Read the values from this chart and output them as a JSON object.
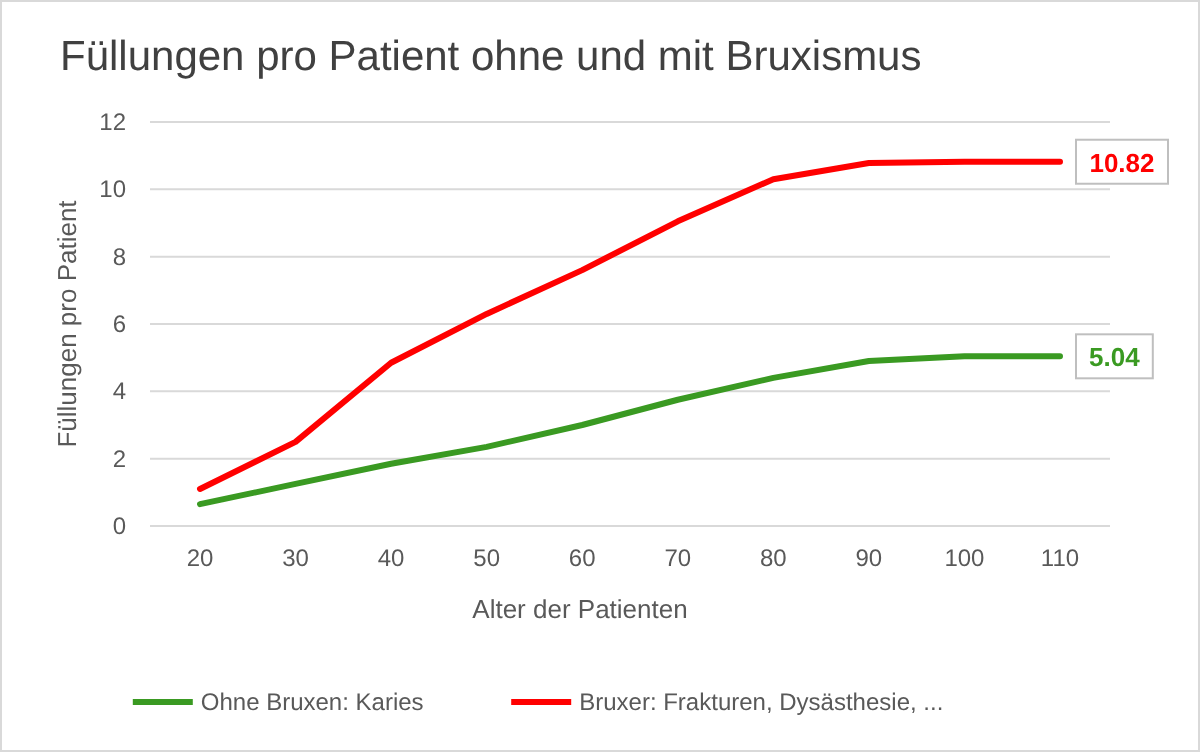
{
  "chart_data": {
    "type": "line",
    "title": "Füllungen pro Patient ohne und mit Bruxismus",
    "xlabel": "Alter der Patienten",
    "ylabel": "Füllungen pro Patient",
    "categories": [
      "20",
      "30",
      "40",
      "50",
      "60",
      "70",
      "80",
      "90",
      "100",
      "110"
    ],
    "series": [
      {
        "name": "Ohne Bruxen: Karies",
        "color": "#3a9a22",
        "values": [
          0.65,
          1.25,
          1.85,
          2.35,
          3.0,
          3.75,
          4.4,
          4.9,
          5.04,
          5.04
        ],
        "value_labels": [
          null,
          null,
          null,
          null,
          null,
          null,
          null,
          null,
          null,
          "5.04"
        ]
      },
      {
        "name": "Bruxer: Frakturen, Dysästhesie, ...",
        "color": "#ff0000",
        "values": [
          1.1,
          2.5,
          4.85,
          6.3,
          7.6,
          9.05,
          10.3,
          10.78,
          10.82,
          10.82
        ],
        "value_labels": [
          null,
          null,
          null,
          null,
          null,
          null,
          null,
          null,
          null,
          "10.82"
        ]
      }
    ],
    "ylim": [
      0,
      12
    ],
    "yticks": [
      0,
      2,
      4,
      6,
      8,
      10,
      12
    ],
    "grid": "y",
    "legend": "bottom",
    "marker": "none",
    "line_style": "solid"
  }
}
